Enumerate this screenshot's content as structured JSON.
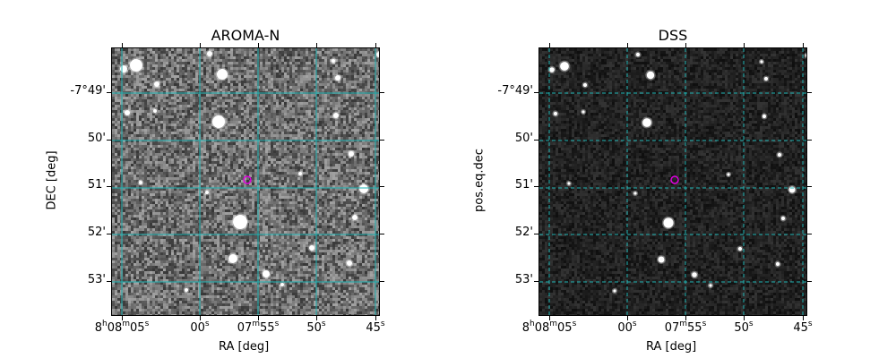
{
  "panels": [
    {
      "title": "AROMA-N",
      "xlabel": "RA [deg]",
      "ylabel": "DEC [deg]",
      "background": "noisy-gray",
      "grid_color": "#1fb4b4",
      "grid_style": "solid",
      "marker_color": "#e000e0"
    },
    {
      "title": "DSS",
      "xlabel": "RA [deg]",
      "ylabel": "pos.eq.dec",
      "background": "dark-noise",
      "grid_color": "#1fb4b4",
      "grid_style": "dashed",
      "marker_color": "#e000e0"
    }
  ],
  "y_ticks": [
    "-7°49'",
    "50'",
    "51'",
    "52'",
    "53'"
  ],
  "x_ticks": [
    {
      "main": "8",
      "s1": "h",
      "mid": "08",
      "s2": "m",
      "end": "05",
      "s3": "s"
    },
    {
      "main": "00",
      "s3": "s"
    },
    {
      "main": "07",
      "s2": "m",
      "end": "55",
      "s3": "s"
    },
    {
      "main": "50",
      "s3": "s"
    },
    {
      "main": "45",
      "s3": "s"
    }
  ]
}
